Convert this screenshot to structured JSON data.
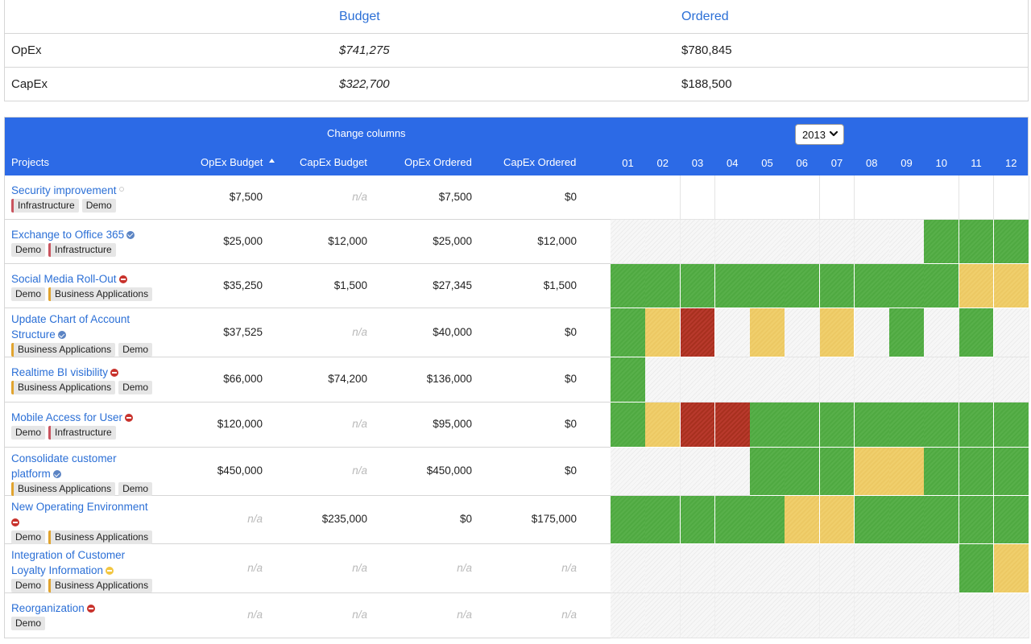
{
  "summary": {
    "headers": {
      "budget": "Budget",
      "ordered": "Ordered"
    },
    "rows": [
      {
        "label": "OpEx",
        "budget": "$741,275",
        "ordered": "$780,845"
      },
      {
        "label": "CapEx",
        "budget": "$322,700",
        "ordered": "$188,500"
      }
    ]
  },
  "toolbar": {
    "change_columns": "Change columns",
    "year": "2013"
  },
  "columns": {
    "projects": "Projects",
    "opex_budget": "OpEx Budget",
    "capex_budget": "CapEx Budget",
    "opex_ordered": "OpEx Ordered",
    "capex_ordered": "CapEx Ordered",
    "sort_icon": "sort-ascending-icon",
    "months": [
      "01",
      "02",
      "03",
      "04",
      "05",
      "06",
      "07",
      "08",
      "09",
      "10",
      "11",
      "12"
    ]
  },
  "colors": {
    "header_bg": "#2c6ae6",
    "link": "#2b6fd6",
    "green": "#58b04a",
    "yellow": "#f0cf6c",
    "red": "#b8392c"
  },
  "projects": [
    {
      "name_lines": [
        "Security improvement"
      ],
      "status": "none",
      "tags": [
        [
          "infra",
          "Infrastructure"
        ],
        [
          "demo",
          "Demo"
        ]
      ],
      "opex_budget": "$7,500",
      "capex_budget": "n/a",
      "opex_ordered": "$7,500",
      "capex_ordered": "$0",
      "months": [
        "e",
        "e",
        "e",
        "e",
        "e",
        "e",
        "e",
        "e",
        "e",
        "e",
        "e",
        "e"
      ]
    },
    {
      "name_lines": [
        "Exchange to Office 365"
      ],
      "status": "check",
      "tags": [
        [
          "demo",
          "Demo"
        ],
        [
          "infra",
          "Infrastructure"
        ]
      ],
      "opex_budget": "$25,000",
      "capex_budget": "$12,000",
      "opex_ordered": "$25,000",
      "capex_ordered": "$12,000",
      "months": [
        "h",
        "h",
        "h",
        "h",
        "h",
        "h",
        "h",
        "h",
        "h",
        "g",
        "g",
        "g"
      ]
    },
    {
      "name_lines": [
        "Social Media Roll-Out"
      ],
      "status": "stop",
      "tags": [
        [
          "demo",
          "Demo"
        ],
        [
          "biz",
          "Business Applications"
        ]
      ],
      "opex_budget": "$35,250",
      "capex_budget": "$1,500",
      "opex_ordered": "$27,345",
      "capex_ordered": "$1,500",
      "months": [
        "g",
        "g",
        "g",
        "g",
        "g",
        "g",
        "g",
        "g",
        "g",
        "g",
        "y",
        "y"
      ]
    },
    {
      "name_lines": [
        "Update Chart of Account",
        "Structure"
      ],
      "status": "check",
      "tags": [
        [
          "biz",
          "Business Applications"
        ],
        [
          "demo",
          "Demo"
        ]
      ],
      "opex_budget": "$37,525",
      "capex_budget": "n/a",
      "opex_ordered": "$40,000",
      "capex_ordered": "$0",
      "months": [
        "g",
        "y",
        "r",
        "h",
        "y",
        "h",
        "y",
        "h",
        "g",
        "h",
        "g",
        "h"
      ]
    },
    {
      "name_lines": [
        "Realtime BI visibility"
      ],
      "status": "stop",
      "tags": [
        [
          "biz",
          "Business Applications"
        ],
        [
          "demo",
          "Demo"
        ]
      ],
      "opex_budget": "$66,000",
      "capex_budget": "$74,200",
      "opex_ordered": "$136,000",
      "capex_ordered": "$0",
      "months": [
        "g",
        "h",
        "h",
        "h",
        "h",
        "h",
        "h",
        "h",
        "h",
        "h",
        "h",
        "h"
      ]
    },
    {
      "name_lines": [
        "Mobile Access for User"
      ],
      "status": "stop",
      "tags": [
        [
          "demo",
          "Demo"
        ],
        [
          "infra",
          "Infrastructure"
        ]
      ],
      "opex_budget": "$120,000",
      "capex_budget": "n/a",
      "opex_ordered": "$95,000",
      "capex_ordered": "$0",
      "months": [
        "g",
        "y",
        "r",
        "r",
        "g",
        "g",
        "g",
        "g",
        "g",
        "g",
        "g",
        "g"
      ]
    },
    {
      "name_lines": [
        "Consolidate customer",
        "platform"
      ],
      "status": "check",
      "tags": [
        [
          "biz",
          "Business Applications"
        ],
        [
          "demo",
          "Demo"
        ]
      ],
      "opex_budget": "$450,000",
      "capex_budget": "n/a",
      "opex_ordered": "$450,000",
      "capex_ordered": "$0",
      "months": [
        "h",
        "h",
        "h",
        "h",
        "g",
        "g",
        "g",
        "y",
        "y",
        "g",
        "g",
        "g"
      ]
    },
    {
      "name_lines": [
        "New Operating Environment",
        ""
      ],
      "status": "stop",
      "tags": [
        [
          "demo",
          "Demo"
        ],
        [
          "biz",
          "Business Applications"
        ]
      ],
      "opex_budget": "n/a",
      "capex_budget": "$235,000",
      "opex_ordered": "$0",
      "capex_ordered": "$175,000",
      "months": [
        "g",
        "g",
        "g",
        "g",
        "g",
        "y",
        "y",
        "g",
        "g",
        "g",
        "g",
        "g"
      ]
    },
    {
      "name_lines": [
        "Integration of Customer",
        "Loyalty Information"
      ],
      "status": "warn",
      "tags": [
        [
          "demo",
          "Demo"
        ],
        [
          "biz",
          "Business Applications"
        ]
      ],
      "opex_budget": "n/a",
      "capex_budget": "n/a",
      "opex_ordered": "n/a",
      "capex_ordered": "n/a",
      "months": [
        "h",
        "h",
        "h",
        "h",
        "h",
        "h",
        "h",
        "h",
        "h",
        "h",
        "g",
        "y"
      ]
    },
    {
      "name_lines": [
        "Reorganization"
      ],
      "status": "stop",
      "tags": [
        [
          "demo",
          "Demo"
        ]
      ],
      "opex_budget": "n/a",
      "capex_budget": "n/a",
      "opex_ordered": "n/a",
      "capex_ordered": "n/a",
      "months": [
        "h",
        "h",
        "h",
        "h",
        "h",
        "h",
        "h",
        "h",
        "h",
        "h",
        "h",
        "h"
      ]
    }
  ]
}
